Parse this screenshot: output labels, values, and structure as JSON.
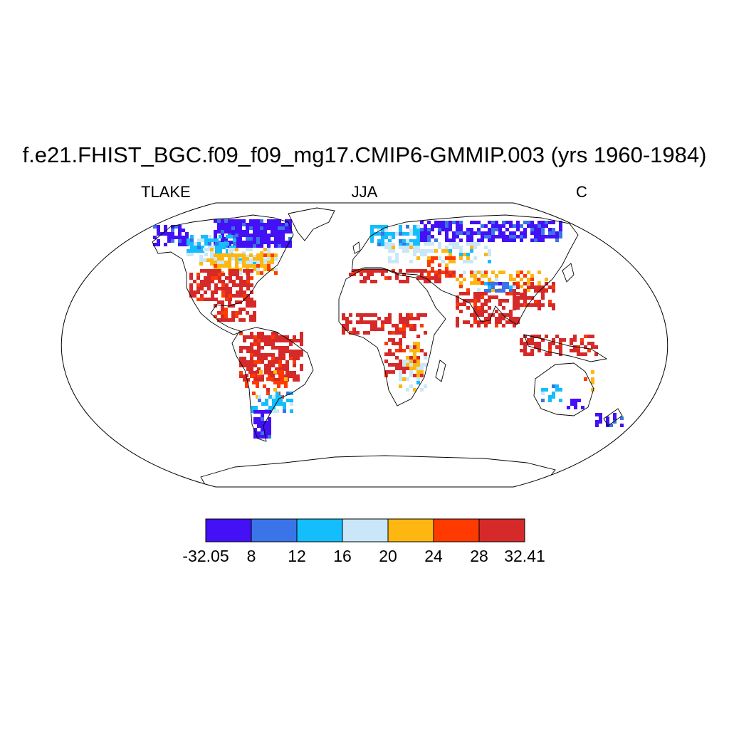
{
  "title": "f.e21.FHIST_BGC.f09_f09_mg17.CMIP6-GMMIP.003 (yrs 1960-1984)",
  "left_label": "TLAKE",
  "center_label": "JJA",
  "right_label": "C",
  "colorbar": {
    "colors": [
      "#4410f5",
      "#3a74e8",
      "#14bdfb",
      "#c9e7f8",
      "#fdb710",
      "#fe3a00",
      "#d52a29"
    ],
    "tick_labels": [
      "-32.05",
      "8",
      "12",
      "16",
      "20",
      "24",
      "28",
      "32.41"
    ]
  }
}
